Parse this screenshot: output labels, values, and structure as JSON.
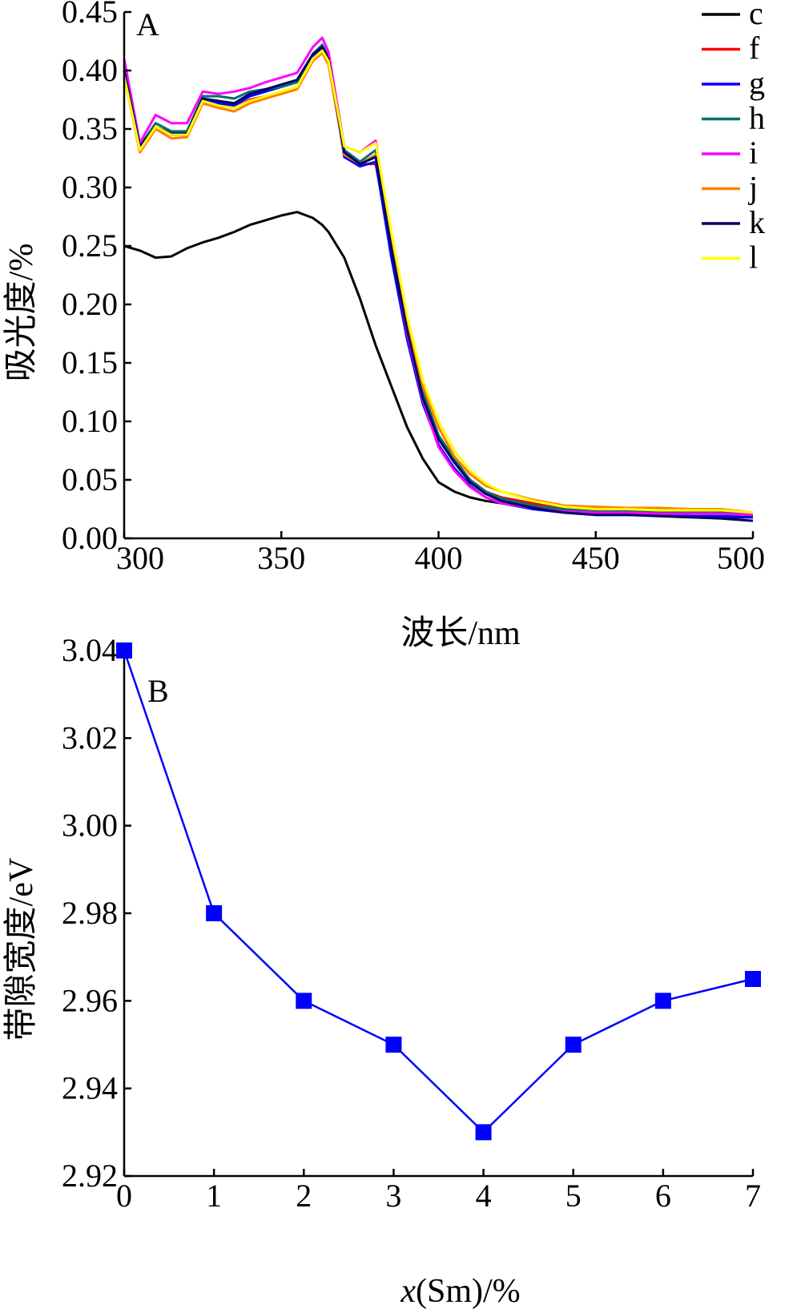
{
  "chart_data": [
    {
      "panel": "A",
      "type": "line",
      "xlabel": "波长/nm",
      "ylabel": "吸光度/%",
      "xlim": [
        300,
        500
      ],
      "ylim": [
        0.0,
        0.45
      ],
      "x_ticks": [
        "300",
        "350",
        "400",
        "450",
        "500"
      ],
      "y_ticks": [
        "0.00",
        "0.05",
        "0.10",
        "0.15",
        "0.20",
        "0.25",
        "0.30",
        "0.35",
        "0.40",
        "0.45"
      ],
      "legend_position": "top-right",
      "grid": false,
      "x": [
        300,
        305,
        310,
        315,
        320,
        325,
        330,
        335,
        340,
        345,
        350,
        355,
        360,
        363,
        365,
        370,
        375,
        380,
        385,
        390,
        395,
        400,
        405,
        410,
        415,
        420,
        430,
        440,
        450,
        460,
        470,
        480,
        490,
        500
      ],
      "series": [
        {
          "name": "c",
          "color": "#000000",
          "values": [
            0.25,
            0.246,
            0.24,
            0.241,
            0.248,
            0.253,
            0.257,
            0.262,
            0.268,
            0.272,
            0.276,
            0.279,
            0.274,
            0.268,
            0.262,
            0.24,
            0.205,
            0.165,
            0.13,
            0.095,
            0.068,
            0.048,
            0.04,
            0.035,
            0.032,
            0.03,
            0.027,
            0.024,
            0.022,
            0.021,
            0.02,
            0.019,
            0.018,
            0.018
          ]
        },
        {
          "name": "f",
          "color": "#ff0000",
          "values": [
            0.4,
            0.335,
            0.352,
            0.345,
            0.345,
            0.375,
            0.37,
            0.368,
            0.375,
            0.378,
            0.38,
            0.385,
            0.41,
            0.418,
            0.408,
            0.33,
            0.32,
            0.32,
            0.25,
            0.18,
            0.12,
            0.085,
            0.065,
            0.05,
            0.04,
            0.035,
            0.03,
            0.025,
            0.023,
            0.023,
            0.022,
            0.022,
            0.022,
            0.02
          ]
        },
        {
          "name": "g",
          "color": "#0000ff",
          "values": [
            0.4,
            0.335,
            0.352,
            0.345,
            0.345,
            0.375,
            0.372,
            0.37,
            0.378,
            0.382,
            0.386,
            0.39,
            0.412,
            0.42,
            0.41,
            0.326,
            0.318,
            0.322,
            0.24,
            0.17,
            0.115,
            0.08,
            0.06,
            0.045,
            0.035,
            0.03,
            0.025,
            0.022,
            0.02,
            0.02,
            0.02,
            0.019,
            0.019,
            0.018
          ]
        },
        {
          "name": "h",
          "color": "#00706b",
          "values": [
            0.4,
            0.335,
            0.355,
            0.348,
            0.348,
            0.378,
            0.378,
            0.376,
            0.382,
            0.384,
            0.386,
            0.39,
            0.414,
            0.422,
            0.412,
            0.332,
            0.322,
            0.332,
            0.255,
            0.182,
            0.125,
            0.088,
            0.068,
            0.05,
            0.04,
            0.034,
            0.028,
            0.025,
            0.024,
            0.024,
            0.023,
            0.023,
            0.023,
            0.021
          ]
        },
        {
          "name": "i",
          "color": "#ff00ff",
          "values": [
            0.41,
            0.338,
            0.362,
            0.355,
            0.355,
            0.382,
            0.38,
            0.382,
            0.385,
            0.39,
            0.394,
            0.398,
            0.42,
            0.428,
            0.416,
            0.335,
            0.33,
            0.34,
            0.25,
            0.175,
            0.118,
            0.078,
            0.058,
            0.044,
            0.035,
            0.03,
            0.026,
            0.023,
            0.022,
            0.022,
            0.021,
            0.021,
            0.021,
            0.02
          ]
        },
        {
          "name": "j",
          "color": "#ff7f00",
          "values": [
            0.395,
            0.33,
            0.35,
            0.342,
            0.343,
            0.372,
            0.368,
            0.365,
            0.372,
            0.376,
            0.38,
            0.384,
            0.408,
            0.415,
            0.405,
            0.328,
            0.32,
            0.328,
            0.255,
            0.185,
            0.13,
            0.095,
            0.07,
            0.055,
            0.045,
            0.04,
            0.033,
            0.028,
            0.027,
            0.026,
            0.026,
            0.025,
            0.025,
            0.022
          ]
        },
        {
          "name": "k",
          "color": "#000066",
          "values": [
            0.4,
            0.335,
            0.352,
            0.346,
            0.346,
            0.376,
            0.374,
            0.372,
            0.38,
            0.384,
            0.388,
            0.392,
            0.414,
            0.42,
            0.41,
            0.33,
            0.32,
            0.326,
            0.248,
            0.178,
            0.12,
            0.085,
            0.065,
            0.048,
            0.038,
            0.032,
            0.026,
            0.022,
            0.02,
            0.02,
            0.019,
            0.018,
            0.017,
            0.015
          ]
        },
        {
          "name": "l",
          "color": "#ffff00",
          "values": [
            0.395,
            0.332,
            0.352,
            0.345,
            0.345,
            0.374,
            0.37,
            0.368,
            0.374,
            0.378,
            0.382,
            0.386,
            0.41,
            0.417,
            0.408,
            0.335,
            0.33,
            0.338,
            0.262,
            0.19,
            0.135,
            0.1,
            0.075,
            0.058,
            0.047,
            0.04,
            0.032,
            0.027,
            0.025,
            0.025,
            0.024,
            0.024,
            0.024,
            0.022
          ]
        }
      ]
    },
    {
      "panel": "B",
      "type": "line",
      "xlabel_italic": "x",
      "xlabel_rest": "(Sm)/%",
      "ylabel": "带隙宽度/eV",
      "xlim": [
        0,
        7
      ],
      "ylim": [
        2.92,
        3.04
      ],
      "x_ticks": [
        "0",
        "1",
        "2",
        "3",
        "4",
        "5",
        "6",
        "7"
      ],
      "y_ticks": [
        "2.92",
        "2.94",
        "2.96",
        "2.98",
        "3.00",
        "3.02",
        "3.04"
      ],
      "grid": false,
      "marker": "square",
      "color": "#0000ff",
      "x": [
        0,
        1,
        2,
        3,
        4,
        5,
        6,
        7
      ],
      "values": [
        3.04,
        2.98,
        2.96,
        2.95,
        2.93,
        2.95,
        2.96,
        2.965
      ]
    }
  ]
}
